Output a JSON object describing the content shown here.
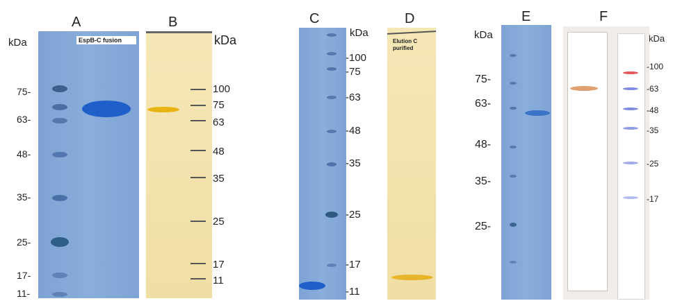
{
  "panels": {
    "A": {
      "letter": "A",
      "unit": "kDa",
      "label_box": "EspB-C fusion",
      "markers": [
        "75-",
        "63-",
        "48-",
        "35-",
        "25-",
        "17-",
        "11-"
      ]
    },
    "B": {
      "letter": "B",
      "unit": "kDa",
      "markers": [
        "100",
        "75",
        "63",
        "48",
        "35",
        "25",
        "17",
        "11"
      ]
    },
    "C": {
      "letter": "C",
      "unit": "kDa",
      "markers": [
        "-100",
        "-75",
        "-63",
        "-48",
        "-35",
        "-25",
        "-17",
        "-11"
      ]
    },
    "D": {
      "letter": "D",
      "label_box": "Elution C purified"
    },
    "E": {
      "letter": "E",
      "unit": "kDa",
      "markers": [
        "75-",
        "63-",
        "48-",
        "35-",
        "25-"
      ]
    },
    "F": {
      "letter": "F",
      "unit": "kDa",
      "markers": [
        "-100",
        "-63",
        "-48",
        "-35",
        "-25",
        "-17"
      ]
    }
  },
  "colors": {
    "coomassie": "#86aad8",
    "coomassie_band": "#1f5fc9",
    "silver": "#f2e0a8",
    "silver_band": "#e8b412",
    "membrane": "#f1ece7",
    "western_band": "#e0a070"
  }
}
